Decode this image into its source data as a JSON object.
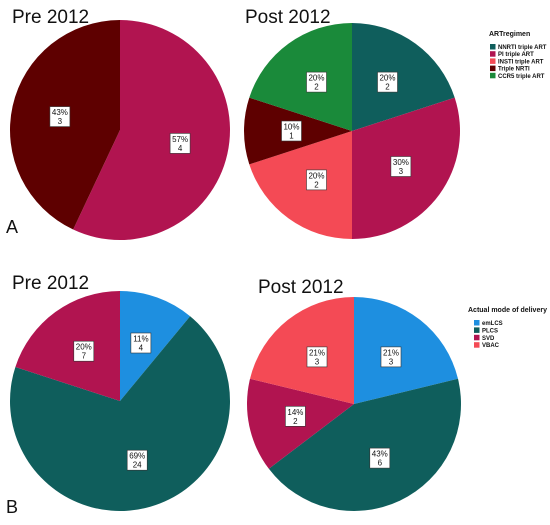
{
  "panels": [
    {
      "letter": "A",
      "legend": {
        "title": "ARTregimen",
        "items": [
          {
            "label": "NNRTI triple ART",
            "color": "#0f5e5c"
          },
          {
            "label": "PI triple ART",
            "color": "#b11450"
          },
          {
            "label": "INSTI triple ART",
            "color": "#f44a55"
          },
          {
            "label": "Triple NRTI",
            "color": "#5e0000"
          },
          {
            "label": "CCR5 triple ART",
            "color": "#1a8a3a"
          }
        ]
      }
    },
    {
      "letter": "B",
      "legend": {
        "title": "Actual mode of delivery",
        "items": [
          {
            "label": "emLCS",
            "color": "#1e8fe0"
          },
          {
            "label": "PLCS",
            "color": "#0f5e5c"
          },
          {
            "label": "SVD",
            "color": "#b11450"
          },
          {
            "label": "VBAC",
            "color": "#f44a55"
          }
        ]
      }
    }
  ],
  "chart_data": [
    {
      "type": "pie",
      "title": "Pre 2012",
      "slices": [
        {
          "category": "PI triple ART",
          "percent": "57%",
          "count": 4,
          "color": "#b11450"
        },
        {
          "category": "Triple NRTI",
          "percent": "43%",
          "count": 3,
          "color": "#5e0000"
        }
      ]
    },
    {
      "type": "pie",
      "title": "Post 2012",
      "slices": [
        {
          "category": "NNRTI triple ART",
          "percent": "20%",
          "count": 2,
          "color": "#0f5e5c"
        },
        {
          "category": "PI triple ART",
          "percent": "30%",
          "count": 3,
          "color": "#b11450"
        },
        {
          "category": "INSTI triple ART",
          "percent": "20%",
          "count": 2,
          "color": "#f44a55"
        },
        {
          "category": "Triple NRTI",
          "percent": "10%",
          "count": 1,
          "color": "#5e0000"
        },
        {
          "category": "CCR5 triple ART",
          "percent": "20%",
          "count": 2,
          "color": "#1a8a3a"
        }
      ]
    },
    {
      "type": "pie",
      "title": "Pre 2012",
      "slices": [
        {
          "category": "emLCS",
          "percent": "11%",
          "count": 4,
          "color": "#1e8fe0"
        },
        {
          "category": "PLCS",
          "percent": "69%",
          "count": 24,
          "color": "#0f5e5c"
        },
        {
          "category": "SVD",
          "percent": "20%",
          "count": 7,
          "color": "#b11450"
        }
      ]
    },
    {
      "type": "pie",
      "title": "Post 2012",
      "slices": [
        {
          "category": "emLCS",
          "percent": "21%",
          "count": 3,
          "color": "#1e8fe0"
        },
        {
          "category": "PLCS",
          "percent": "43%",
          "count": 6,
          "color": "#0f5e5c"
        },
        {
          "category": "SVD",
          "percent": "14%",
          "count": 2,
          "color": "#b11450"
        },
        {
          "category": "VBAC",
          "percent": "21%",
          "count": 3,
          "color": "#f44a55"
        }
      ]
    }
  ]
}
